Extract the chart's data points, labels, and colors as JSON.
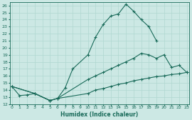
{
  "xlabel": "Humidex (Indice chaleur)",
  "ylabel": "",
  "bg_color": "#cce8e4",
  "line_color": "#1a6b5a",
  "grid_color": "#b0d8d0",
  "curve1_x": [
    0,
    1,
    2,
    3,
    5,
    6,
    7,
    8,
    10,
    11,
    12,
    13,
    14,
    15,
    16,
    17,
    18,
    19
  ],
  "curve1_y": [
    14.5,
    13.2,
    13.3,
    13.5,
    12.5,
    12.8,
    14.3,
    17.0,
    19.0,
    21.5,
    23.3,
    24.5,
    24.8,
    26.2,
    25.2,
    24.0,
    23.0,
    21.0
  ],
  "curve2_x": [
    0,
    3,
    5,
    6,
    10,
    11,
    12,
    13,
    14,
    15,
    16,
    17,
    18,
    19,
    20,
    21,
    22,
    23
  ],
  "curve2_y": [
    14.5,
    13.5,
    12.5,
    12.8,
    15.5,
    16.0,
    16.5,
    17.0,
    17.5,
    18.0,
    18.5,
    19.2,
    19.0,
    18.5,
    19.0,
    17.2,
    17.5,
    16.5
  ],
  "curve3_x": [
    0,
    3,
    5,
    6,
    10,
    11,
    12,
    13,
    14,
    15,
    16,
    17,
    18,
    19,
    20,
    21,
    22,
    23
  ],
  "curve3_y": [
    14.5,
    13.5,
    12.5,
    12.8,
    13.5,
    14.0,
    14.2,
    14.5,
    14.8,
    15.0,
    15.3,
    15.5,
    15.7,
    15.9,
    16.0,
    16.2,
    16.3,
    16.5
  ],
  "xlim": [
    0,
    23
  ],
  "ylim": [
    12,
    26.5
  ],
  "yticks": [
    12,
    13,
    14,
    15,
    16,
    17,
    18,
    19,
    20,
    21,
    22,
    23,
    24,
    25,
    26
  ],
  "xticks": [
    0,
    1,
    2,
    3,
    4,
    5,
    6,
    7,
    8,
    9,
    10,
    11,
    12,
    13,
    14,
    15,
    16,
    17,
    18,
    19,
    20,
    21,
    22,
    23
  ],
  "marker": "+"
}
